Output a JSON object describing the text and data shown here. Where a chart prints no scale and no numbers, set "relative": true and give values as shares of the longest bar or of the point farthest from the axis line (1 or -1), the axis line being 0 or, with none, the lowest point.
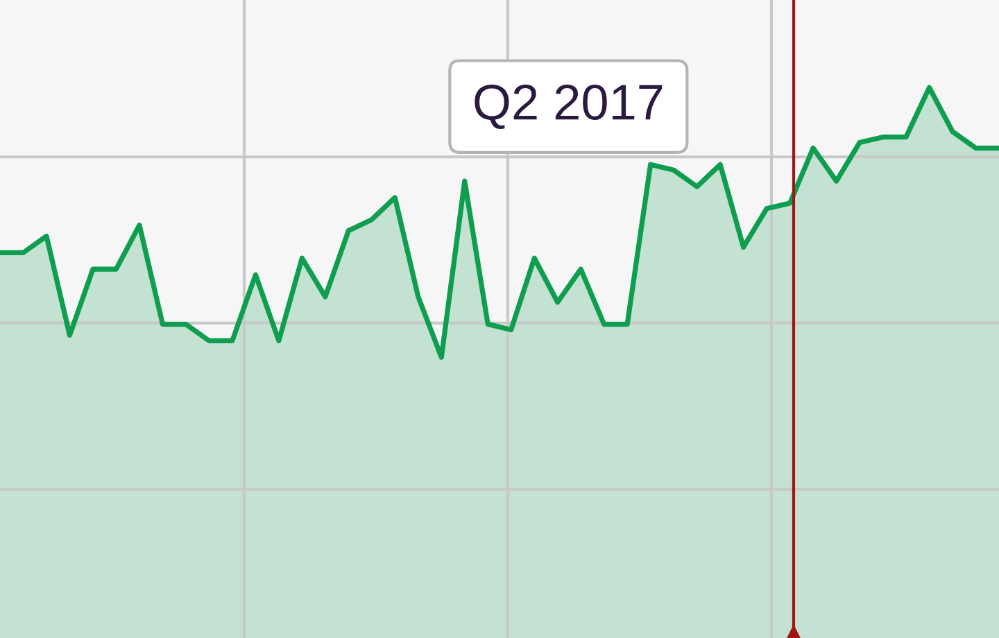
{
  "chart_data": {
    "type": "area",
    "relative": true,
    "grid": true,
    "categories": [
      null,
      null,
      null,
      null,
      null,
      null,
      null,
      null,
      null,
      null,
      null,
      null,
      null,
      null,
      null,
      null,
      null,
      null,
      null,
      null,
      null,
      null,
      null,
      null,
      null,
      null,
      null,
      null,
      null,
      null,
      null,
      null,
      null,
      null,
      null,
      null,
      null,
      null,
      null,
      null,
      null,
      null,
      null,
      null
    ],
    "series": [
      {
        "color": "#0f9d4f",
        "values": [
          0.7,
          0.7,
          0.73,
          0.55,
          0.67,
          0.67,
          0.75,
          0.57,
          0.57,
          0.54,
          0.54,
          0.66,
          0.54,
          0.69,
          0.62,
          0.74,
          0.76,
          0.8,
          0.62,
          0.51,
          0.83,
          0.57,
          0.56,
          0.69,
          0.61,
          0.67,
          0.57,
          0.57,
          0.86,
          0.85,
          0.82,
          0.86,
          0.71,
          0.78,
          0.79,
          0.89,
          0.83,
          0.9,
          0.91,
          0.91,
          1,
          0.92,
          0.89,
          0.89
        ]
      }
    ],
    "annotations": [
      "Q2 2017"
    ]
  }
}
